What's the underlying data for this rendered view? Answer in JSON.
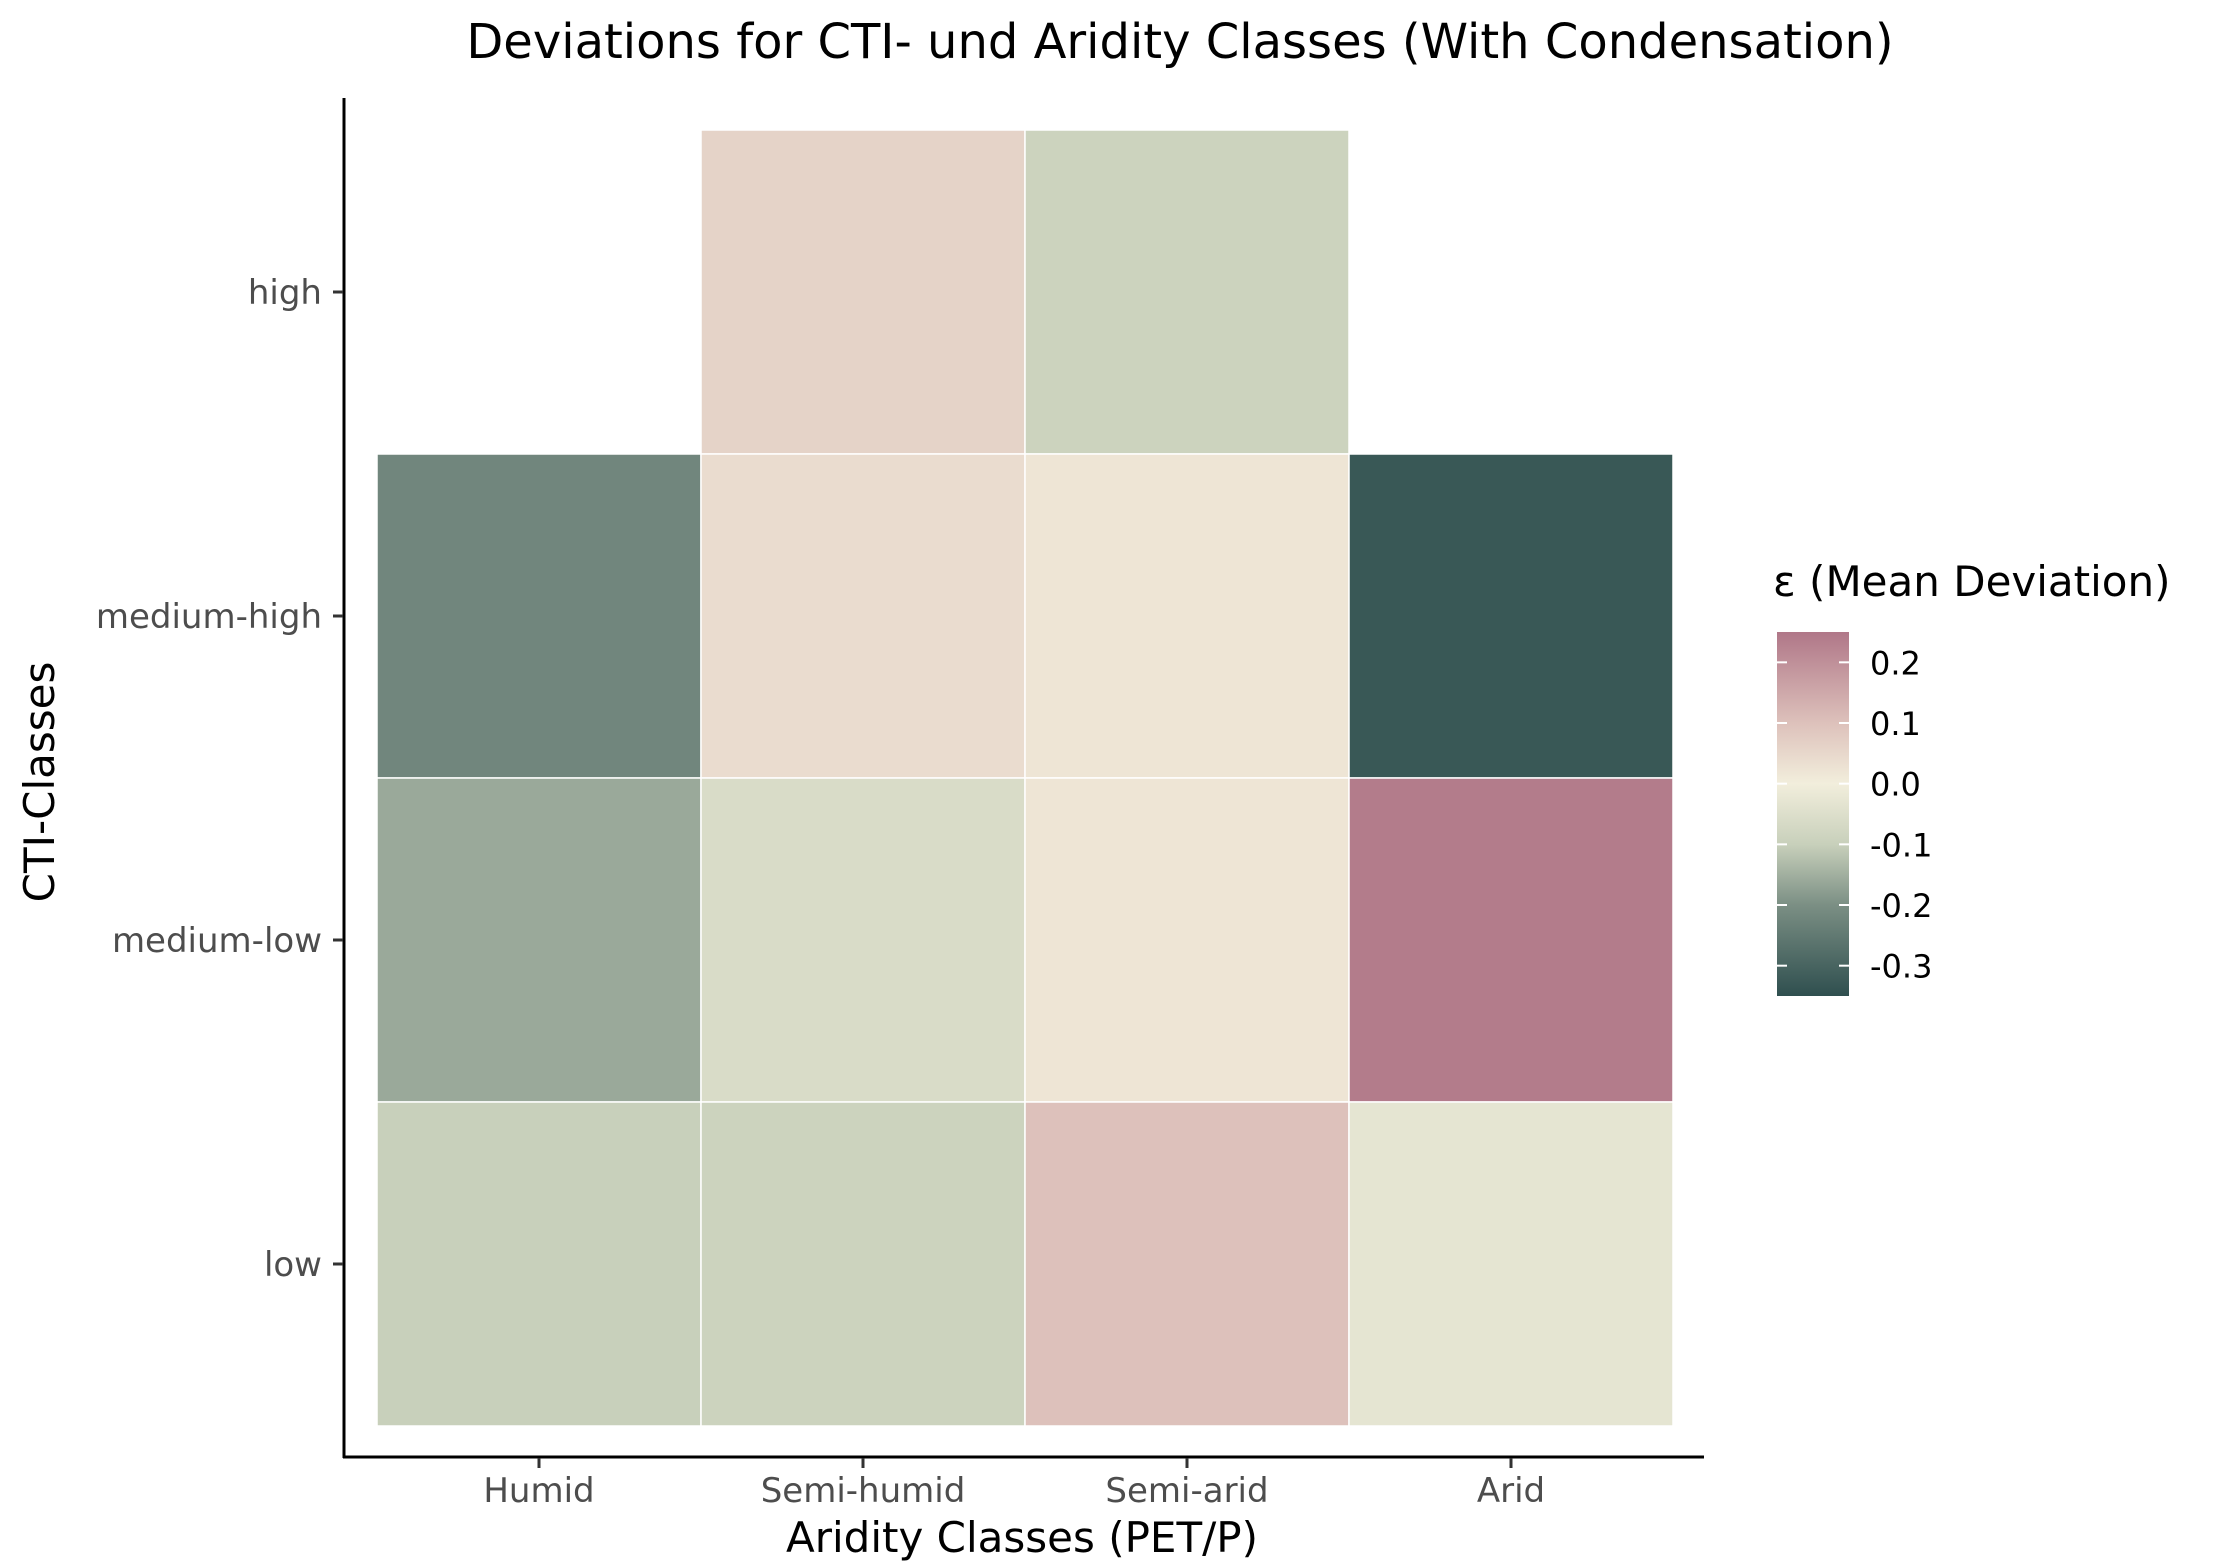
{
  "chart_data": {
    "type": "heatmap",
    "title": "Deviations for CTI- und Aridity Classes (With Condensation)",
    "xlabel": "Aridity Classes (PET/P)",
    "ylabel": "CTI-Classes",
    "x_categories": [
      "Humid",
      "Semi-humid",
      "Semi-arid",
      "Arid"
    ],
    "y_categories": [
      "low",
      "medium-low",
      "medium-high",
      "high"
    ],
    "cells": [
      {
        "x": "Semi-humid",
        "y": "high",
        "value": 0.06
      },
      {
        "x": "Semi-arid",
        "y": "high",
        "value": -0.09
      },
      {
        "x": "Humid",
        "y": "medium-high",
        "value": -0.22
      },
      {
        "x": "Semi-humid",
        "y": "medium-high",
        "value": 0.04
      },
      {
        "x": "Semi-arid",
        "y": "medium-high",
        "value": 0.02
      },
      {
        "x": "Arid",
        "y": "medium-high",
        "value": -0.33
      },
      {
        "x": "Humid",
        "y": "medium-low",
        "value": -0.16
      },
      {
        "x": "Semi-humid",
        "y": "medium-low",
        "value": -0.06
      },
      {
        "x": "Semi-arid",
        "y": "medium-low",
        "value": 0.02
      },
      {
        "x": "Arid",
        "y": "medium-low",
        "value": 0.24
      },
      {
        "x": "Humid",
        "y": "low",
        "value": -0.1
      },
      {
        "x": "Semi-humid",
        "y": "low",
        "value": -0.09
      },
      {
        "x": "Semi-arid",
        "y": "low",
        "value": 0.1
      },
      {
        "x": "Arid",
        "y": "low",
        "value": -0.03
      }
    ],
    "legend": {
      "title": "ε (Mean Deviation)",
      "breaks": [
        0.2,
        0.1,
        0.0,
        -0.1,
        -0.2,
        -0.3
      ],
      "break_labels": [
        "0.2",
        "0.1",
        "0.0",
        "-0.1",
        "-0.2",
        "-0.3"
      ],
      "limits": [
        -0.35,
        0.25
      ],
      "placement": "right"
    },
    "color_scale": {
      "stops": [
        {
          "value": -0.35,
          "color": "#2f4f4f"
        },
        {
          "value": -0.2,
          "color": "#7b8f84"
        },
        {
          "value": -0.1,
          "color": "#c8d0bb"
        },
        {
          "value": 0.0,
          "color": "#f2eedc"
        },
        {
          "value": 0.1,
          "color": "#ddc1bb"
        },
        {
          "value": 0.25,
          "color": "#b07788"
        }
      ]
    },
    "grid": false
  }
}
